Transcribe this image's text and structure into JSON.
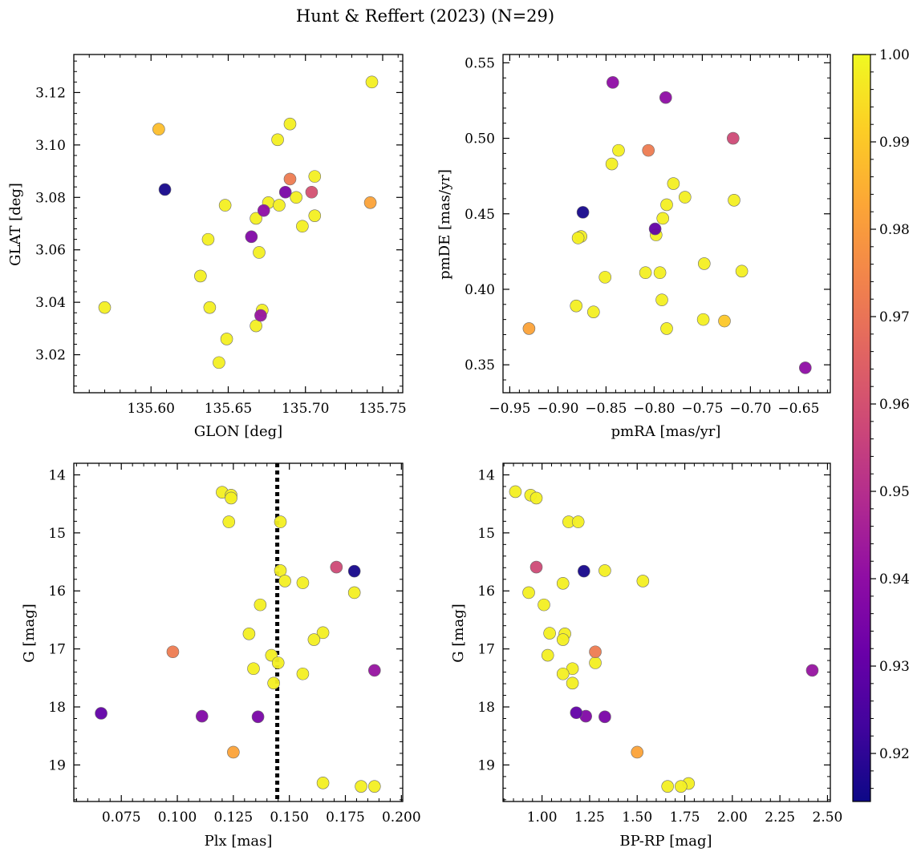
{
  "figure": {
    "title": "Hunt & Reffert (2023) (N=29)"
  },
  "colorbar": {
    "range": [
      0.9145,
      1.0
    ],
    "ticks": [
      0.92,
      0.93,
      0.94,
      0.95,
      0.96,
      0.97,
      0.98,
      0.99,
      1.0
    ],
    "tick_labels": [
      "0.92",
      "0.93",
      "0.94",
      "0.95",
      "0.96",
      "0.97",
      "0.98",
      "0.99",
      "1.00"
    ],
    "colormap": "plasma"
  },
  "chart_data": [
    {
      "type": "scatter",
      "id": "sky",
      "xlabel": "GLON [deg]",
      "ylabel": "GLAT [deg]",
      "xlim": [
        135.55,
        135.763
      ],
      "ylim": [
        3.0055,
        3.1345
      ],
      "xticks": [
        135.6,
        135.65,
        135.7,
        135.75
      ],
      "xtick_labels": [
        "135.60",
        "135.65",
        "135.70",
        "135.75"
      ],
      "yticks": [
        3.02,
        3.04,
        3.06,
        3.08,
        3.1,
        3.12
      ],
      "ytick_labels": [
        "3.02",
        "3.04",
        "3.06",
        "3.08",
        "3.10",
        "3.12"
      ],
      "points": [
        {
          "x": 135.743,
          "y": 3.124,
          "c": 0.998
        },
        {
          "x": 135.605,
          "y": 3.106,
          "c": 0.988
        },
        {
          "x": 135.69,
          "y": 3.108,
          "c": 0.998
        },
        {
          "x": 135.682,
          "y": 3.102,
          "c": 0.998
        },
        {
          "x": 135.609,
          "y": 3.083,
          "c": 0.916
        },
        {
          "x": 135.706,
          "y": 3.088,
          "c": 0.998
        },
        {
          "x": 135.69,
          "y": 3.087,
          "c": 0.972
        },
        {
          "x": 135.687,
          "y": 3.082,
          "c": 0.935
        },
        {
          "x": 135.704,
          "y": 3.082,
          "c": 0.96
        },
        {
          "x": 135.694,
          "y": 3.08,
          "c": 0.998
        },
        {
          "x": 135.742,
          "y": 3.078,
          "c": 0.982
        },
        {
          "x": 135.676,
          "y": 3.078,
          "c": 0.998
        },
        {
          "x": 135.648,
          "y": 3.077,
          "c": 0.998
        },
        {
          "x": 135.683,
          "y": 3.077,
          "c": 0.998
        },
        {
          "x": 135.673,
          "y": 3.075,
          "c": 0.94
        },
        {
          "x": 135.706,
          "y": 3.073,
          "c": 0.998
        },
        {
          "x": 135.668,
          "y": 3.072,
          "c": 0.998
        },
        {
          "x": 135.698,
          "y": 3.069,
          "c": 0.998
        },
        {
          "x": 135.665,
          "y": 3.065,
          "c": 0.937
        },
        {
          "x": 135.637,
          "y": 3.064,
          "c": 0.998
        },
        {
          "x": 135.67,
          "y": 3.059,
          "c": 0.998
        },
        {
          "x": 135.632,
          "y": 3.05,
          "c": 0.998
        },
        {
          "x": 135.57,
          "y": 3.038,
          "c": 0.998
        },
        {
          "x": 135.638,
          "y": 3.038,
          "c": 0.998
        },
        {
          "x": 135.672,
          "y": 3.037,
          "c": 0.998
        },
        {
          "x": 135.671,
          "y": 3.035,
          "c": 0.942
        },
        {
          "x": 135.668,
          "y": 3.031,
          "c": 0.998
        },
        {
          "x": 135.649,
          "y": 3.026,
          "c": 0.998
        },
        {
          "x": 135.644,
          "y": 3.017,
          "c": 0.998
        }
      ]
    },
    {
      "type": "scatter",
      "id": "pm",
      "xlabel": "pmRA [mas/yr]",
      "ylabel": "pmDE [mas/yr]",
      "xlim": [
        -0.957,
        -0.617
      ],
      "ylim": [
        0.3315,
        0.5555
      ],
      "xticks": [
        -0.95,
        -0.9,
        -0.85,
        -0.8,
        -0.75,
        -0.7,
        -0.65
      ],
      "xtick_labels": [
        "−0.95",
        "−0.90",
        "−0.85",
        "−0.80",
        "−0.75",
        "−0.70",
        "−0.65"
      ],
      "yticks": [
        0.35,
        0.4,
        0.45,
        0.5,
        0.55
      ],
      "ytick_labels": [
        "0.35",
        "0.40",
        "0.45",
        "0.50",
        "0.55"
      ],
      "points": [
        {
          "x": -0.843,
          "y": 0.537,
          "c": 0.94
        },
        {
          "x": -0.788,
          "y": 0.527,
          "c": 0.94
        },
        {
          "x": -0.718,
          "y": 0.5,
          "c": 0.958
        },
        {
          "x": -0.837,
          "y": 0.492,
          "c": 0.998
        },
        {
          "x": -0.806,
          "y": 0.492,
          "c": 0.972
        },
        {
          "x": -0.844,
          "y": 0.483,
          "c": 0.998
        },
        {
          "x": -0.78,
          "y": 0.47,
          "c": 0.998
        },
        {
          "x": -0.768,
          "y": 0.461,
          "c": 0.998
        },
        {
          "x": -0.717,
          "y": 0.459,
          "c": 0.998
        },
        {
          "x": -0.787,
          "y": 0.456,
          "c": 0.998
        },
        {
          "x": -0.874,
          "y": 0.451,
          "c": 0.916
        },
        {
          "x": -0.791,
          "y": 0.447,
          "c": 0.998
        },
        {
          "x": -0.799,
          "y": 0.44,
          "c": 0.93
        },
        {
          "x": -0.798,
          "y": 0.436,
          "c": 0.998
        },
        {
          "x": -0.876,
          "y": 0.435,
          "c": 0.998
        },
        {
          "x": -0.879,
          "y": 0.434,
          "c": 0.998
        },
        {
          "x": -0.748,
          "y": 0.417,
          "c": 0.998
        },
        {
          "x": -0.709,
          "y": 0.412,
          "c": 0.998
        },
        {
          "x": -0.809,
          "y": 0.411,
          "c": 0.998
        },
        {
          "x": -0.794,
          "y": 0.411,
          "c": 0.998
        },
        {
          "x": -0.851,
          "y": 0.408,
          "c": 0.998
        },
        {
          "x": -0.792,
          "y": 0.393,
          "c": 0.998
        },
        {
          "x": -0.881,
          "y": 0.389,
          "c": 0.998
        },
        {
          "x": -0.863,
          "y": 0.385,
          "c": 0.998
        },
        {
          "x": -0.749,
          "y": 0.38,
          "c": 0.998
        },
        {
          "x": -0.727,
          "y": 0.379,
          "c": 0.99
        },
        {
          "x": -0.93,
          "y": 0.374,
          "c": 0.982
        },
        {
          "x": -0.787,
          "y": 0.374,
          "c": 0.998
        },
        {
          "x": -0.643,
          "y": 0.348,
          "c": 0.94
        }
      ]
    },
    {
      "type": "scatter",
      "id": "plx",
      "xlabel": "Plx [mas]",
      "ylabel": "G [mag]",
      "xlim": [
        0.0538,
        0.2006
      ],
      "ylim": [
        19.63,
        13.8
      ],
      "xticks": [
        0.075,
        0.1,
        0.125,
        0.15,
        0.175,
        0.2
      ],
      "xtick_labels": [
        "0.075",
        "0.100",
        "0.125",
        "0.150",
        "0.175",
        "0.200"
      ],
      "yticks": [
        14,
        15,
        16,
        17,
        18,
        19
      ],
      "ytick_labels": [
        "14",
        "15",
        "16",
        "17",
        "18",
        "19"
      ],
      "vline": 0.1446,
      "points": [
        {
          "x": 0.12,
          "y": 14.3,
          "c": 0.998
        },
        {
          "x": 0.124,
          "y": 14.35,
          "c": 0.998
        },
        {
          "x": 0.124,
          "y": 14.4,
          "c": 0.998
        },
        {
          "x": 0.123,
          "y": 14.81,
          "c": 0.998
        },
        {
          "x": 0.146,
          "y": 14.81,
          "c": 0.998
        },
        {
          "x": 0.171,
          "y": 15.59,
          "c": 0.958
        },
        {
          "x": 0.179,
          "y": 15.66,
          "c": 0.916
        },
        {
          "x": 0.146,
          "y": 15.65,
          "c": 0.998
        },
        {
          "x": 0.148,
          "y": 15.83,
          "c": 0.998
        },
        {
          "x": 0.156,
          "y": 15.86,
          "c": 0.998
        },
        {
          "x": 0.179,
          "y": 16.03,
          "c": 0.998
        },
        {
          "x": 0.137,
          "y": 16.24,
          "c": 0.998
        },
        {
          "x": 0.132,
          "y": 16.74,
          "c": 0.998
        },
        {
          "x": 0.165,
          "y": 16.72,
          "c": 0.998
        },
        {
          "x": 0.161,
          "y": 16.84,
          "c": 0.998
        },
        {
          "x": 0.098,
          "y": 17.05,
          "c": 0.972
        },
        {
          "x": 0.142,
          "y": 17.11,
          "c": 0.998
        },
        {
          "x": 0.145,
          "y": 17.24,
          "c": 0.998
        },
        {
          "x": 0.134,
          "y": 17.34,
          "c": 0.998
        },
        {
          "x": 0.188,
          "y": 17.37,
          "c": 0.942
        },
        {
          "x": 0.156,
          "y": 17.43,
          "c": 0.998
        },
        {
          "x": 0.143,
          "y": 17.59,
          "c": 0.998
        },
        {
          "x": 0.066,
          "y": 18.11,
          "c": 0.93
        },
        {
          "x": 0.111,
          "y": 18.16,
          "c": 0.937
        },
        {
          "x": 0.136,
          "y": 18.17,
          "c": 0.935
        },
        {
          "x": 0.125,
          "y": 18.78,
          "c": 0.982
        },
        {
          "x": 0.165,
          "y": 19.31,
          "c": 0.998
        },
        {
          "x": 0.182,
          "y": 19.37,
          "c": 0.998
        },
        {
          "x": 0.188,
          "y": 19.37,
          "c": 0.998
        }
      ]
    },
    {
      "type": "scatter",
      "id": "cmd",
      "xlabel": "BP-RP [mag]",
      "ylabel": "G [mag]",
      "xlim": [
        0.795,
        2.515
      ],
      "ylim": [
        19.63,
        13.8
      ],
      "xticks": [
        1.0,
        1.25,
        1.5,
        1.75,
        2.0,
        2.25,
        2.5
      ],
      "xtick_labels": [
        "1.00",
        "1.25",
        "1.50",
        "1.75",
        "2.00",
        "2.25",
        "2.50"
      ],
      "yticks": [
        14,
        15,
        16,
        17,
        18,
        19
      ],
      "ytick_labels": [
        "14",
        "15",
        "16",
        "17",
        "18",
        "19"
      ],
      "points": [
        {
          "x": 0.86,
          "y": 14.29,
          "c": 0.998
        },
        {
          "x": 0.94,
          "y": 14.35,
          "c": 0.998
        },
        {
          "x": 0.97,
          "y": 14.4,
          "c": 0.998
        },
        {
          "x": 1.14,
          "y": 14.81,
          "c": 0.998
        },
        {
          "x": 1.19,
          "y": 14.81,
          "c": 0.998
        },
        {
          "x": 0.97,
          "y": 15.59,
          "c": 0.958
        },
        {
          "x": 1.22,
          "y": 15.66,
          "c": 0.916
        },
        {
          "x": 1.33,
          "y": 15.65,
          "c": 0.998
        },
        {
          "x": 1.53,
          "y": 15.83,
          "c": 0.998
        },
        {
          "x": 1.11,
          "y": 15.87,
          "c": 0.998
        },
        {
          "x": 0.93,
          "y": 16.03,
          "c": 0.998
        },
        {
          "x": 1.01,
          "y": 16.24,
          "c": 0.998
        },
        {
          "x": 1.04,
          "y": 16.73,
          "c": 0.998
        },
        {
          "x": 1.12,
          "y": 16.74,
          "c": 0.998
        },
        {
          "x": 1.11,
          "y": 16.84,
          "c": 0.998
        },
        {
          "x": 1.28,
          "y": 17.05,
          "c": 0.972
        },
        {
          "x": 1.03,
          "y": 17.11,
          "c": 0.998
        },
        {
          "x": 1.28,
          "y": 17.24,
          "c": 0.998
        },
        {
          "x": 1.16,
          "y": 17.34,
          "c": 0.998
        },
        {
          "x": 2.42,
          "y": 17.37,
          "c": 0.942
        },
        {
          "x": 1.11,
          "y": 17.43,
          "c": 0.998
        },
        {
          "x": 1.16,
          "y": 17.59,
          "c": 0.998
        },
        {
          "x": 1.18,
          "y": 18.1,
          "c": 0.93
        },
        {
          "x": 1.23,
          "y": 18.16,
          "c": 0.937
        },
        {
          "x": 1.33,
          "y": 18.17,
          "c": 0.935
        },
        {
          "x": 1.5,
          "y": 18.78,
          "c": 0.982
        },
        {
          "x": 1.77,
          "y": 19.32,
          "c": 0.998
        },
        {
          "x": 1.66,
          "y": 19.37,
          "c": 0.998
        },
        {
          "x": 1.73,
          "y": 19.37,
          "c": 0.998
        }
      ]
    }
  ]
}
